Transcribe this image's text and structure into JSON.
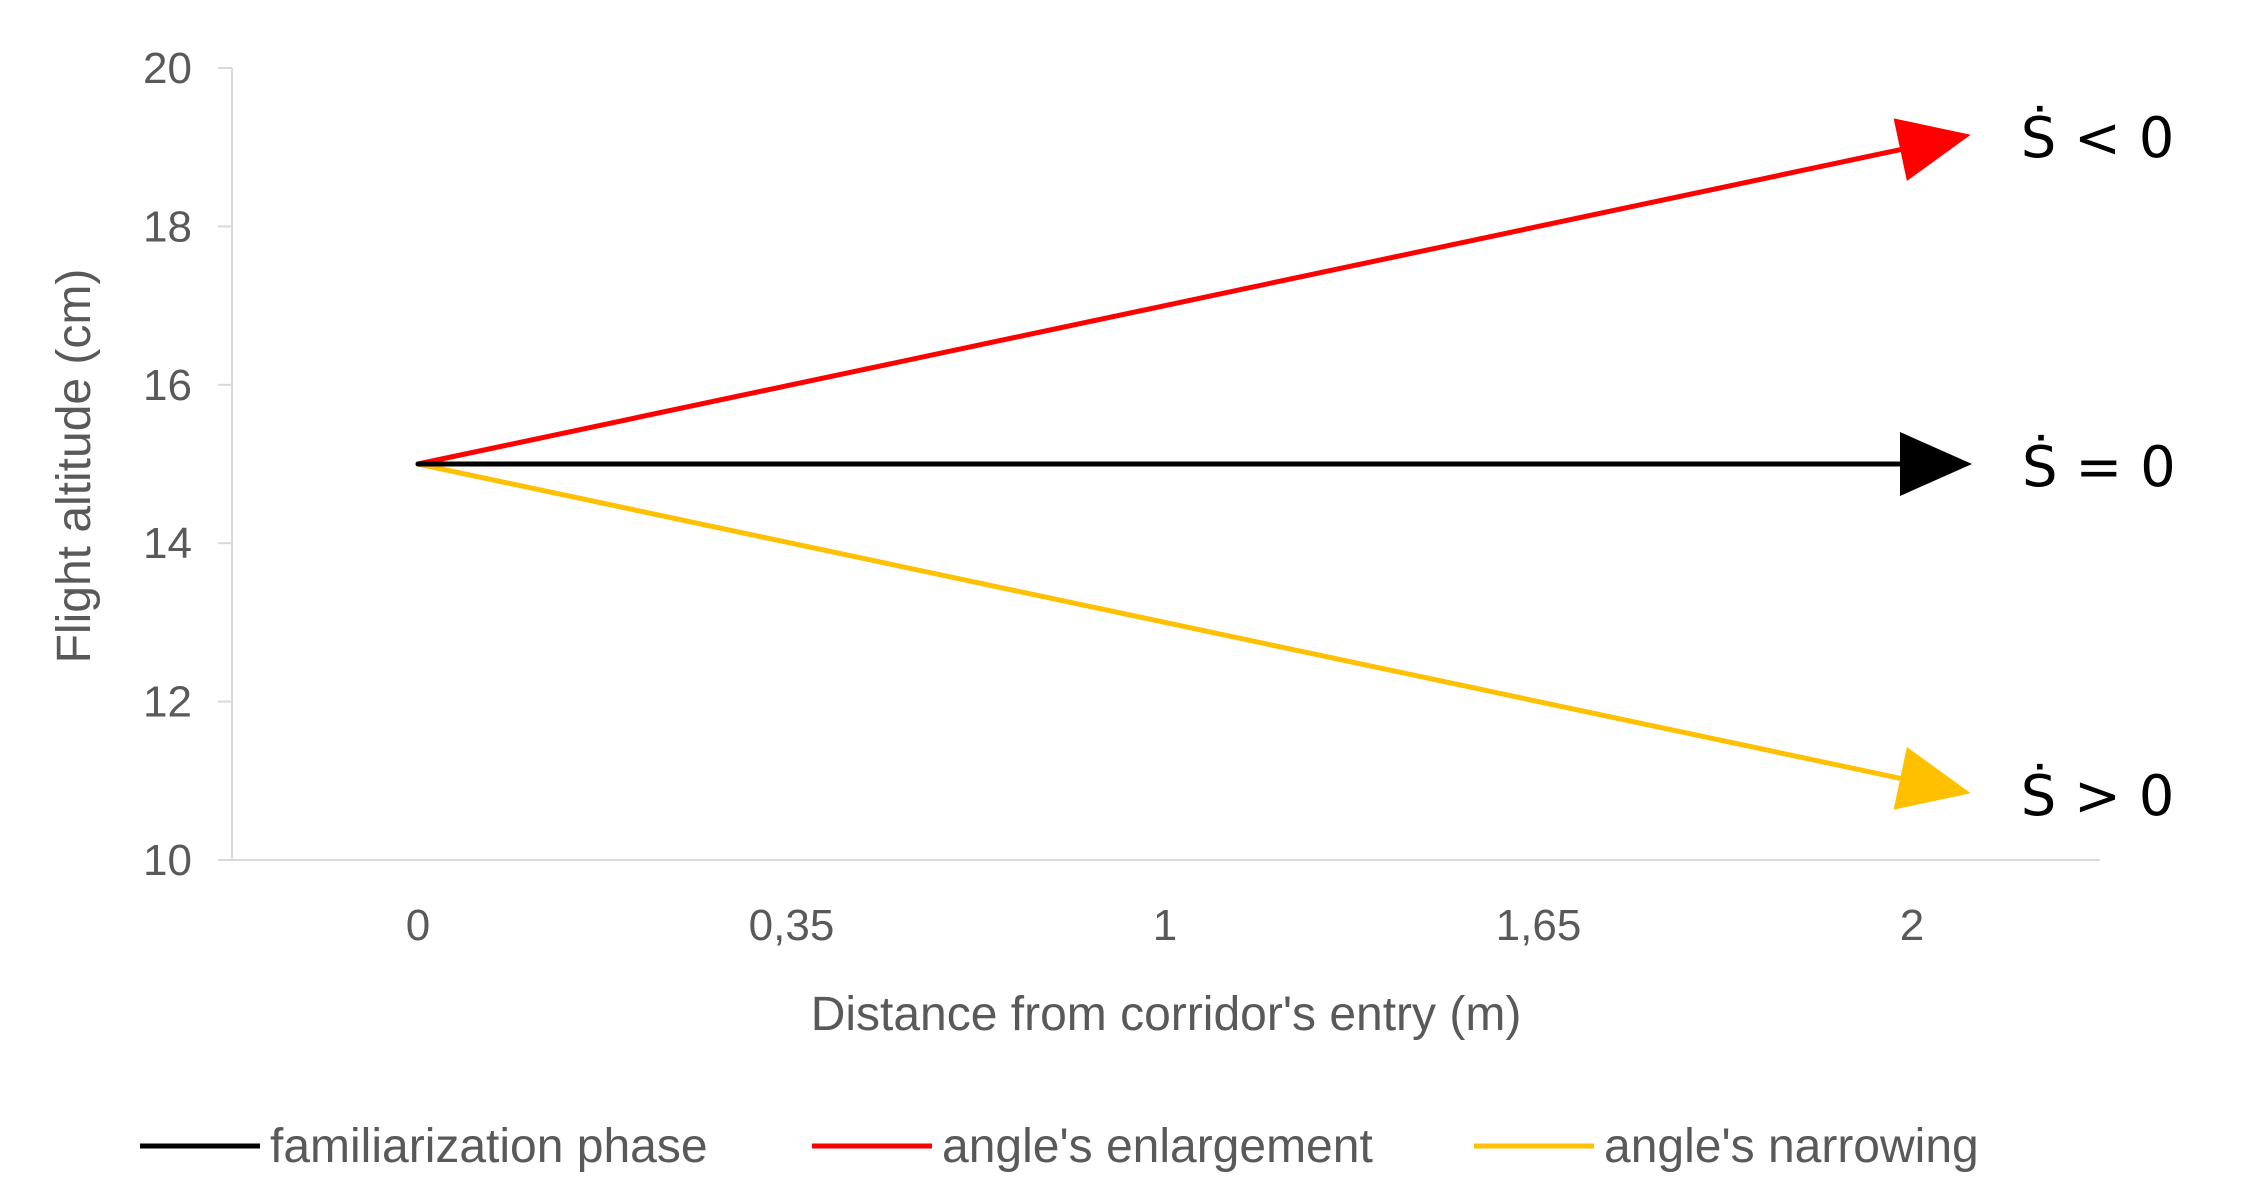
{
  "chart_data": {
    "type": "line",
    "title": "",
    "xlabel": "Distance from corridor's entry (m)",
    "ylabel": "Flight altitude (cm)",
    "categories": [
      "0",
      "0,35",
      "1",
      "1,65",
      "2"
    ],
    "ylim": [
      10,
      20
    ],
    "yticks": [
      10,
      12,
      14,
      16,
      18,
      20
    ],
    "grid": false,
    "legend_position": "bottom",
    "series": [
      {
        "name": "familiarization phase",
        "color": "#000000",
        "points": [
          {
            "x": "0",
            "y": 15
          },
          {
            "x": "2",
            "y": 15
          }
        ],
        "arrow": true,
        "annotation": "Ṡ = 0"
      },
      {
        "name": "angle's enlargement",
        "color": "#ff0000",
        "points": [
          {
            "x": "0",
            "y": 15
          },
          {
            "x": "2",
            "y": 19
          }
        ],
        "arrow": true,
        "annotation": "Ṡ < 0"
      },
      {
        "name": "angle's narrowing",
        "color": "#ffc000",
        "points": [
          {
            "x": "0",
            "y": 15
          },
          {
            "x": "2",
            "y": 11
          }
        ],
        "arrow": true,
        "annotation": "Ṡ > 0"
      }
    ]
  }
}
